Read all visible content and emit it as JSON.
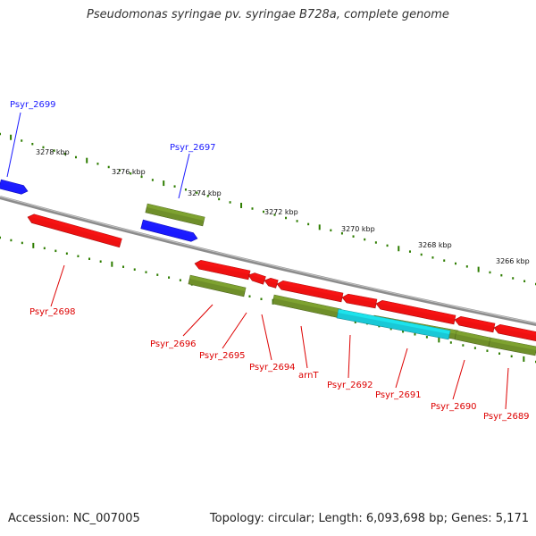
{
  "title": "Pseudomonas syringae pv. syringae B728a, complete genome",
  "footer": {
    "accession": "Accession: NC_007005",
    "summary": "Topology: circular; Length: 6,093,698 bp; Genes: 5,171"
  },
  "colors": {
    "backbone": "#8c8c8c",
    "forward_gene": "#1a1aff",
    "reverse_gene": "#ee1111",
    "olive_feature": "#6f8f2a",
    "cyan_feature": "#19c8d6",
    "tick": "#2e7d00",
    "forward_label": "#1a1aff",
    "reverse_label": "#dd0000"
  },
  "tick_labels": [
    "3278 kbp",
    "3276 kbp",
    "3274 kbp",
    "3272 kbp",
    "3270 kbp",
    "3268 kbp",
    "3266 kbp"
  ],
  "genes": [
    {
      "name": "Psyr_2699",
      "strand": "forward"
    },
    {
      "name": "Psyr_2697",
      "strand": "forward"
    },
    {
      "name": "Psyr_2698",
      "strand": "reverse"
    },
    {
      "name": "Psyr_2696",
      "strand": "reverse"
    },
    {
      "name": "Psyr_2695",
      "strand": "reverse"
    },
    {
      "name": "Psyr_2694",
      "strand": "reverse"
    },
    {
      "name": "arnT",
      "strand": "reverse"
    },
    {
      "name": "Psyr_2692",
      "strand": "reverse"
    },
    {
      "name": "Psyr_2691",
      "strand": "reverse"
    },
    {
      "name": "Psyr_2690",
      "strand": "reverse"
    },
    {
      "name": "Psyr_2689",
      "strand": "reverse"
    }
  ]
}
